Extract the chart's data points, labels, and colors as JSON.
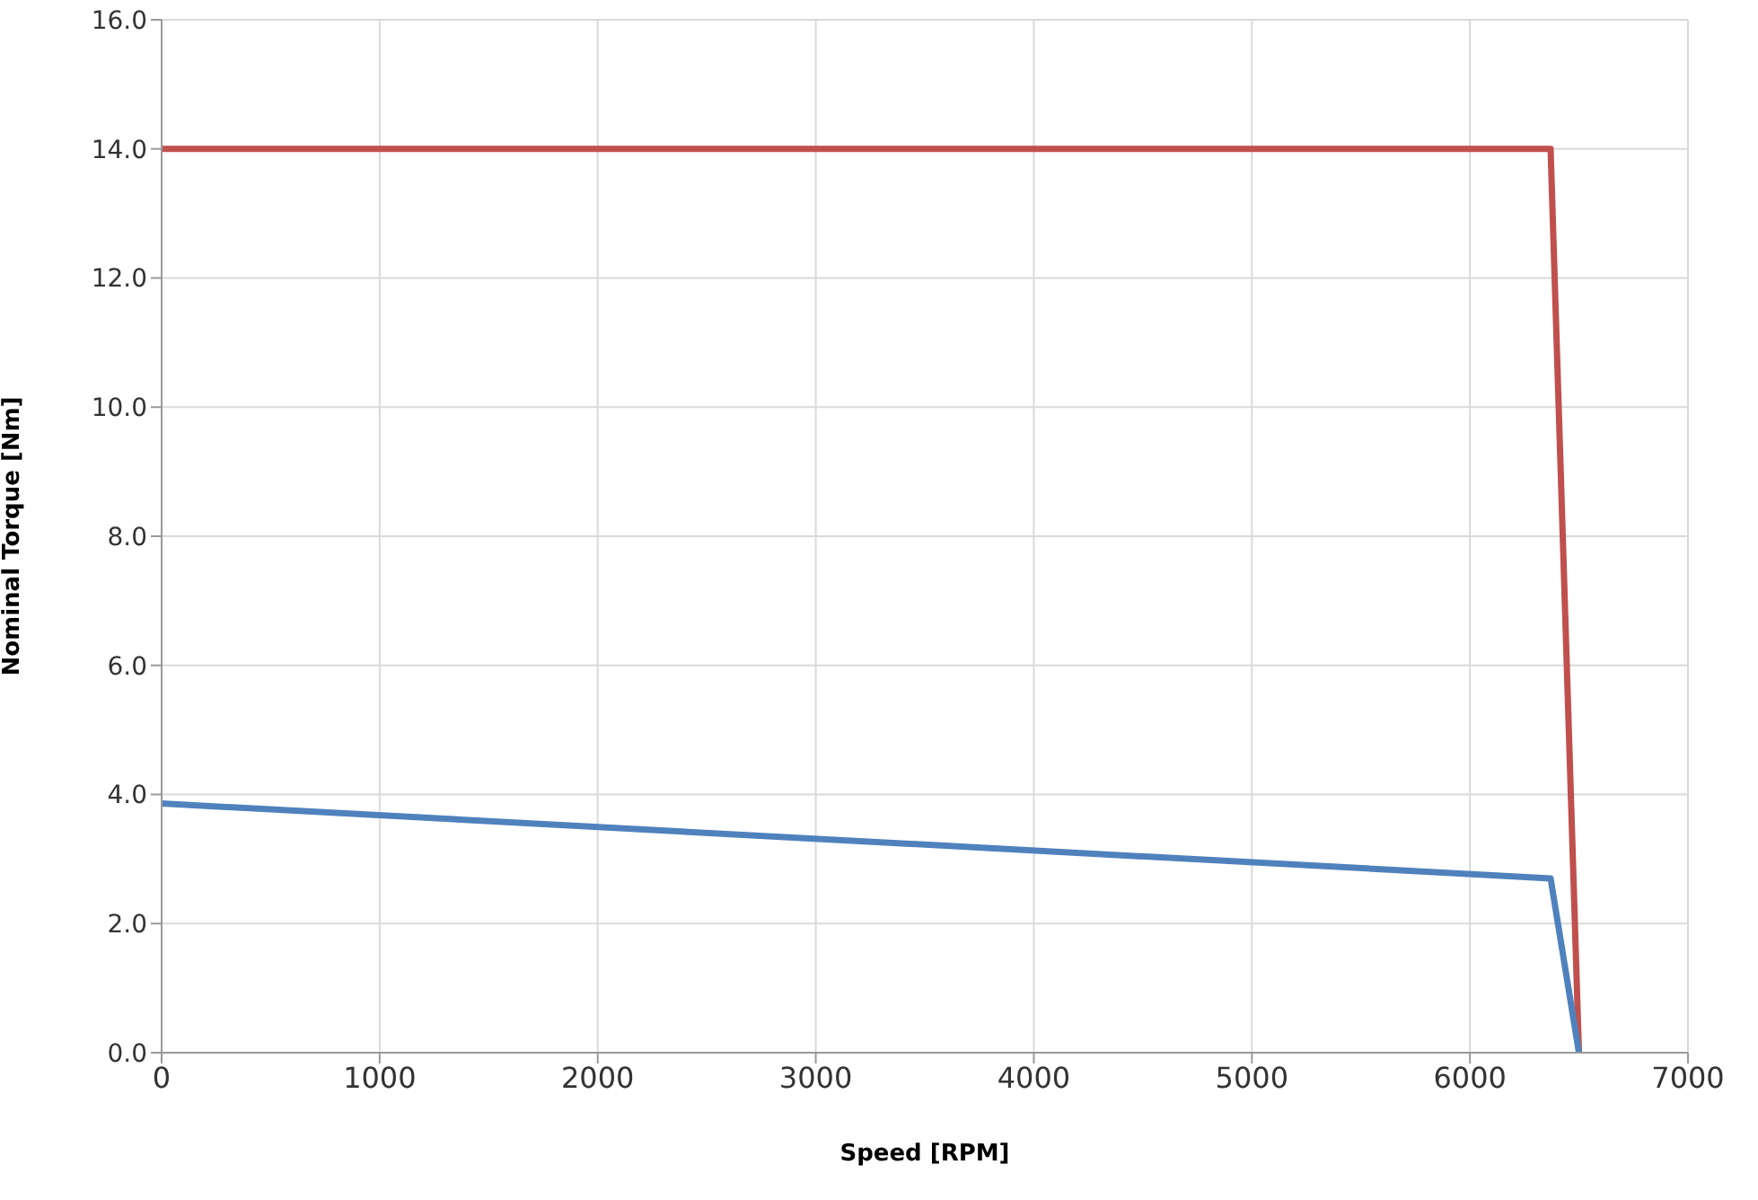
{
  "chart_data": {
    "type": "line",
    "xlabel": "Speed [RPM]",
    "ylabel": "Nominal Torque [Nm]",
    "series": [
      {
        "color": "#c0504d",
        "x": [
          0,
          6370,
          6500
        ],
        "values": [
          14,
          14,
          0
        ]
      },
      {
        "color": "#4f81bd",
        "x": [
          0,
          6370,
          6500
        ],
        "values": [
          3.86,
          2.7,
          0
        ]
      }
    ],
    "xlim": [
      0,
      7000
    ],
    "xticks": [
      0,
      1000,
      2000,
      3000,
      4000,
      5000,
      6000,
      7000
    ],
    "ylim": [
      0,
      16
    ],
    "yticks": [
      {
        "value": 0,
        "label": "0.0"
      },
      {
        "value": 2,
        "label": "2.0"
      },
      {
        "value": 4,
        "label": "4.0"
      },
      {
        "value": 6,
        "label": "6.0"
      },
      {
        "value": 8,
        "label": "8.0"
      },
      {
        "value": 10,
        "label": "10.0"
      },
      {
        "value": 12,
        "label": "12.0"
      },
      {
        "value": 14,
        "label": "14.0"
      },
      {
        "value": 16,
        "label": "16.0"
      }
    ],
    "grid": true,
    "marker": "none",
    "line_style": "solid",
    "legend": false
  }
}
